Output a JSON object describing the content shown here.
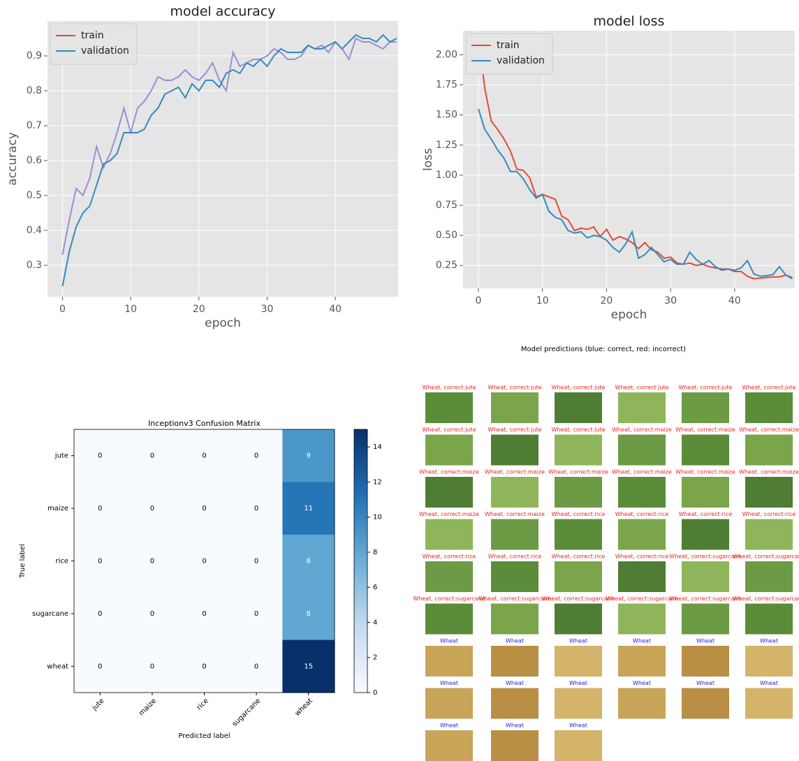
{
  "chart_data": [
    {
      "type": "line",
      "title": "model accuracy",
      "xlabel": "epoch",
      "ylabel": "accuracy",
      "x": [
        0,
        1,
        2,
        3,
        4,
        5,
        6,
        7,
        8,
        9,
        10,
        11,
        12,
        13,
        14,
        15,
        16,
        17,
        18,
        19,
        20,
        21,
        22,
        23,
        24,
        25,
        26,
        27,
        28,
        29,
        30,
        31,
        32,
        33,
        34,
        35,
        36,
        37,
        38,
        39,
        40,
        41,
        42,
        43,
        44,
        45,
        46,
        47,
        48,
        49
      ],
      "xlim": [
        -2.2,
        49.2
      ],
      "xticks": [
        0,
        10,
        20,
        30,
        40
      ],
      "ylim": [
        0.21,
        1.0
      ],
      "yticks": [
        0.3,
        0.4,
        0.5,
        0.6,
        0.7,
        0.8,
        0.9
      ],
      "grid": true,
      "legend": "upper left",
      "series": [
        {
          "name": "train",
          "color": "#988ed5",
          "legend_color": "#e24a33",
          "values": [
            0.33,
            0.43,
            0.52,
            0.5,
            0.55,
            0.64,
            0.58,
            0.62,
            0.68,
            0.75,
            0.68,
            0.75,
            0.77,
            0.8,
            0.84,
            0.83,
            0.83,
            0.84,
            0.86,
            0.84,
            0.83,
            0.85,
            0.88,
            0.83,
            0.8,
            0.91,
            0.87,
            0.88,
            0.89,
            0.89,
            0.9,
            0.92,
            0.91,
            0.89,
            0.89,
            0.9,
            0.93,
            0.92,
            0.93,
            0.91,
            0.94,
            0.92,
            0.89,
            0.95,
            0.94,
            0.94,
            0.93,
            0.92,
            0.94,
            0.94
          ]
        },
        {
          "name": "validation",
          "color": "#348abd",
          "legend_color": "#348abd",
          "values": [
            0.24,
            0.34,
            0.41,
            0.45,
            0.47,
            0.53,
            0.59,
            0.6,
            0.62,
            0.68,
            0.68,
            0.68,
            0.69,
            0.73,
            0.75,
            0.79,
            0.8,
            0.81,
            0.78,
            0.82,
            0.8,
            0.83,
            0.83,
            0.81,
            0.85,
            0.86,
            0.85,
            0.88,
            0.87,
            0.89,
            0.87,
            0.9,
            0.92,
            0.91,
            0.91,
            0.91,
            0.93,
            0.92,
            0.92,
            0.93,
            0.94,
            0.92,
            0.94,
            0.96,
            0.95,
            0.95,
            0.94,
            0.96,
            0.94,
            0.95
          ]
        }
      ]
    },
    {
      "type": "line",
      "title": "model loss",
      "xlabel": "epoch",
      "ylabel": "loss",
      "x": [
        0,
        1,
        2,
        3,
        4,
        5,
        6,
        7,
        8,
        9,
        10,
        11,
        12,
        13,
        14,
        15,
        16,
        17,
        18,
        19,
        20,
        21,
        22,
        23,
        24,
        25,
        26,
        27,
        28,
        29,
        30,
        31,
        32,
        33,
        34,
        35,
        36,
        37,
        38,
        39,
        40,
        41,
        42,
        43,
        44,
        45,
        46,
        47,
        48,
        49
      ],
      "xlim": [
        -2.4,
        49.4
      ],
      "xticks": [
        0,
        10,
        20,
        30,
        40
      ],
      "ylim": [
        0.06,
        2.2
      ],
      "yticks": [
        {
          "value": 0.25,
          "label": "0.25"
        },
        {
          "value": 0.5,
          "label": "0.50"
        },
        {
          "value": 0.75,
          "label": "0.75"
        },
        {
          "value": 1.0,
          "label": "1.00"
        },
        {
          "value": 1.25,
          "label": "1.25"
        },
        {
          "value": 1.5,
          "label": "1.50"
        },
        {
          "value": 1.75,
          "label": "1.75"
        },
        {
          "value": 2.0,
          "label": "2.00"
        }
      ],
      "grid": true,
      "legend": "upper left",
      "series": [
        {
          "name": "train",
          "color": "#e24a33",
          "legend_color": "#e24a33",
          "values": [
            2.15,
            1.72,
            1.45,
            1.38,
            1.3,
            1.2,
            1.05,
            1.04,
            0.98,
            0.82,
            0.84,
            0.82,
            0.8,
            0.66,
            0.63,
            0.54,
            0.56,
            0.55,
            0.57,
            0.49,
            0.55,
            0.46,
            0.49,
            0.47,
            0.44,
            0.39,
            0.44,
            0.38,
            0.36,
            0.31,
            0.32,
            0.27,
            0.26,
            0.27,
            0.25,
            0.26,
            0.24,
            0.23,
            0.22,
            0.22,
            0.2,
            0.2,
            0.16,
            0.14,
            0.145,
            0.15,
            0.155,
            0.155,
            0.17,
            0.15
          ]
        },
        {
          "name": "validation",
          "color": "#348abd",
          "legend_color": "#348abd",
          "values": [
            1.55,
            1.38,
            1.3,
            1.21,
            1.14,
            1.03,
            1.03,
            0.97,
            0.88,
            0.81,
            0.84,
            0.7,
            0.65,
            0.63,
            0.54,
            0.52,
            0.53,
            0.48,
            0.5,
            0.49,
            0.46,
            0.4,
            0.36,
            0.43,
            0.53,
            0.31,
            0.34,
            0.4,
            0.34,
            0.28,
            0.3,
            0.26,
            0.26,
            0.36,
            0.3,
            0.26,
            0.29,
            0.24,
            0.21,
            0.22,
            0.21,
            0.23,
            0.29,
            0.18,
            0.16,
            0.165,
            0.175,
            0.24,
            0.17,
            0.14
          ]
        }
      ]
    },
    {
      "type": "heatmap",
      "title": "Inceptionv3 Confusion Matrix",
      "xlabel": "Predicted label",
      "ylabel": "True label",
      "x_categories": [
        "jute",
        "maize",
        "rice",
        "sugarcane",
        "wheat"
      ],
      "y_categories": [
        "jute",
        "maize",
        "rice",
        "sugarcane",
        "wheat"
      ],
      "values": [
        [
          0,
          0,
          0,
          0,
          9
        ],
        [
          0,
          0,
          0,
          0,
          11
        ],
        [
          0,
          0,
          0,
          0,
          8
        ],
        [
          0,
          0,
          0,
          0,
          8
        ],
        [
          0,
          0,
          0,
          0,
          15
        ]
      ],
      "clim": [
        0,
        15
      ],
      "cbar_ticks": [
        0,
        2,
        4,
        6,
        8,
        10,
        12,
        14
      ],
      "colormap": "Blues"
    }
  ],
  "predictions": {
    "title": "Model predictions (blue: correct, red: incorrect)",
    "colors": {
      "correct": "#2222dd",
      "incorrect": "#ee2222"
    },
    "items": [
      {
        "label": "Wheat,  correct:jute",
        "correct": false
      },
      {
        "label": "Wheat,  correct:jute",
        "correct": false
      },
      {
        "label": "Wheat,  correct:jute",
        "correct": false
      },
      {
        "label": "Wheat,  correct:jute",
        "correct": false
      },
      {
        "label": "Wheat,  correct:jute",
        "correct": false
      },
      {
        "label": "Wheat,  correct:jute",
        "correct": false
      },
      {
        "label": "Wheat,  correct:jute",
        "correct": false
      },
      {
        "label": "Wheat,  correct:jute",
        "correct": false
      },
      {
        "label": "Wheat,  correct:jute",
        "correct": false
      },
      {
        "label": "Wheat,  correct:maize",
        "correct": false
      },
      {
        "label": "Wheat,  correct:maize",
        "correct": false
      },
      {
        "label": "Wheat,  correct:maize",
        "correct": false
      },
      {
        "label": "Wheat,  correct:maize",
        "correct": false
      },
      {
        "label": "Wheat,  correct:maize",
        "correct": false
      },
      {
        "label": "Wheat,  correct:maize",
        "correct": false
      },
      {
        "label": "Wheat,  correct:maize",
        "correct": false
      },
      {
        "label": "Wheat,  correct:maize",
        "correct": false
      },
      {
        "label": "Wheat,  correct:maize",
        "correct": false
      },
      {
        "label": "Wheat,  correct:maize",
        "correct": false
      },
      {
        "label": "Wheat,  correct:maize",
        "correct": false
      },
      {
        "label": "Wheat,  correct:rice",
        "correct": false
      },
      {
        "label": "Wheat,  correct:rice",
        "correct": false
      },
      {
        "label": "Wheat,  correct:rice",
        "correct": false
      },
      {
        "label": "Wheat,  correct:rice",
        "correct": false
      },
      {
        "label": "Wheat,  correct:rice",
        "correct": false
      },
      {
        "label": "Wheat,  correct:rice",
        "correct": false
      },
      {
        "label": "Wheat,  correct:rice",
        "correct": false
      },
      {
        "label": "Wheat,  correct:rice",
        "correct": false
      },
      {
        "label": "Wheat,  correct:sugarcane",
        "correct": false
      },
      {
        "label": "Wheat,  correct:sugarcane",
        "correct": false
      },
      {
        "label": "Wheat,  correct:sugarcane",
        "correct": false
      },
      {
        "label": "Wheat,  correct:sugarcane",
        "correct": false
      },
      {
        "label": "Wheat,  correct:sugarcane",
        "correct": false
      },
      {
        "label": "Wheat,  correct:sugarcane",
        "correct": false
      },
      {
        "label": "Wheat,  correct:sugarcane",
        "correct": false
      },
      {
        "label": "Wheat,  correct:sugarcane",
        "correct": false
      },
      {
        "label": "Wheat",
        "correct": true
      },
      {
        "label": "Wheat",
        "correct": true
      },
      {
        "label": "Wheat",
        "correct": true
      },
      {
        "label": "Wheat",
        "correct": true
      },
      {
        "label": "Wheat",
        "correct": true
      },
      {
        "label": "Wheat",
        "correct": true
      },
      {
        "label": "Wheat",
        "correct": true
      },
      {
        "label": "Wheat",
        "correct": true
      },
      {
        "label": "Wheat",
        "correct": true
      },
      {
        "label": "Wheat",
        "correct": true
      },
      {
        "label": "Wheat",
        "correct": true
      },
      {
        "label": "Wheat",
        "correct": true
      },
      {
        "label": "Wheat",
        "correct": true
      },
      {
        "label": "Wheat",
        "correct": true
      },
      {
        "label": "Wheat",
        "correct": true
      }
    ]
  }
}
